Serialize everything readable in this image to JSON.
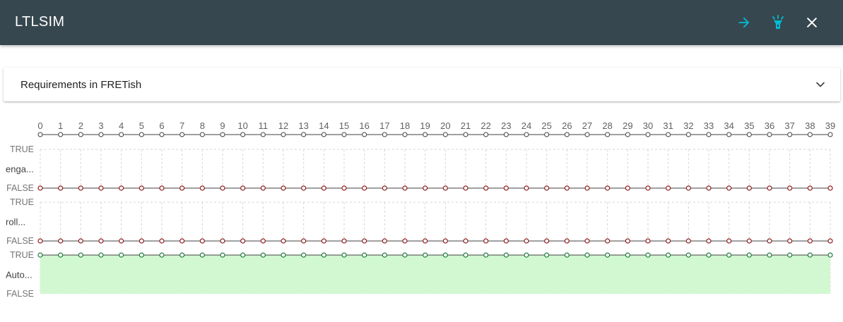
{
  "appbar": {
    "title": "LTLSIM",
    "icons": [
      "arrow-right-icon",
      "flashlight-icon",
      "close-icon"
    ],
    "accent": "#00bcd4"
  },
  "panel": {
    "title": "Requirements in FRETish"
  },
  "chart_data": {
    "type": "line",
    "x": [
      0,
      1,
      2,
      3,
      4,
      5,
      6,
      7,
      8,
      9,
      10,
      11,
      12,
      13,
      14,
      15,
      16,
      17,
      18,
      19,
      20,
      21,
      22,
      23,
      24,
      25,
      26,
      27,
      28,
      29,
      30,
      31,
      32,
      33,
      34,
      35,
      36,
      37,
      38,
      39
    ],
    "true_label": "TRUE",
    "false_label": "FALSE",
    "series": [
      {
        "name": "enga...",
        "values": [
          0,
          0,
          0,
          0,
          0,
          0,
          0,
          0,
          0,
          0,
          0,
          0,
          0,
          0,
          0,
          0,
          0,
          0,
          0,
          0,
          0,
          0,
          0,
          0,
          0,
          0,
          0,
          0,
          0,
          0,
          0,
          0,
          0,
          0,
          0,
          0,
          0,
          0,
          0,
          0
        ],
        "color": "#8b1a1a"
      },
      {
        "name": "roll...",
        "values": [
          0,
          0,
          0,
          0,
          0,
          0,
          0,
          0,
          0,
          0,
          0,
          0,
          0,
          0,
          0,
          0,
          0,
          0,
          0,
          0,
          0,
          0,
          0,
          0,
          0,
          0,
          0,
          0,
          0,
          0,
          0,
          0,
          0,
          0,
          0,
          0,
          0,
          0,
          0,
          0
        ],
        "color": "#8b1a1a"
      },
      {
        "name": "Auto...",
        "values": [
          1,
          1,
          1,
          1,
          1,
          1,
          1,
          1,
          1,
          1,
          1,
          1,
          1,
          1,
          1,
          1,
          1,
          1,
          1,
          1,
          1,
          1,
          1,
          1,
          1,
          1,
          1,
          1,
          1,
          1,
          1,
          1,
          1,
          1,
          1,
          1,
          1,
          1,
          1,
          1
        ],
        "color": "#1b7a3a",
        "fill": "#d2f8d2"
      }
    ]
  }
}
